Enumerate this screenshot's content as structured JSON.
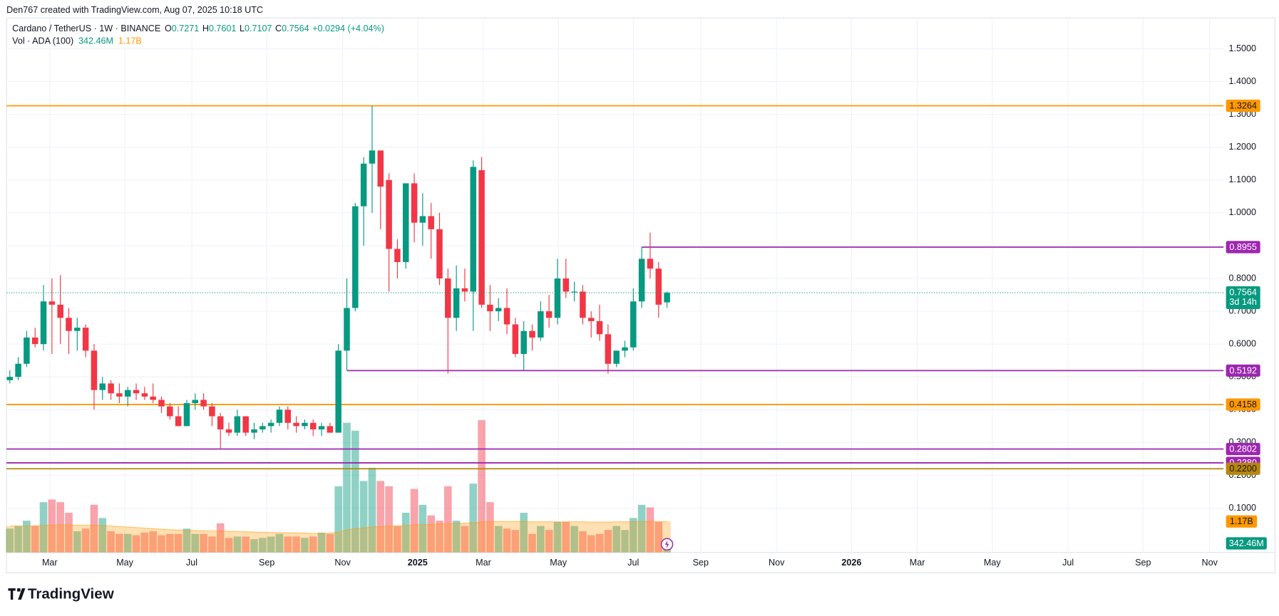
{
  "header": {
    "credit": "Den767 created with TradingView.com, Aug 07, 2025 10:18 UTC"
  },
  "footer": {
    "brand": "TradingView"
  },
  "chart_data": {
    "type": "candlestick",
    "title": "Cardano / TetherUS · 1W · BINANCE",
    "ohlc_keys": [
      "O",
      "H",
      "L",
      "C"
    ],
    "change_label": "+0.0294 (+4.04%)",
    "countdown": "3d 14h",
    "volume_title": "Vol · ADA (100)",
    "up_color": "#089981",
    "down_color": "#f23645",
    "x": [
      0,
      1,
      2,
      3,
      4,
      5,
      6,
      7,
      8,
      9,
      10,
      11,
      12,
      13,
      14,
      15,
      16,
      17,
      18,
      19,
      20,
      21,
      22,
      23,
      24,
      25,
      26,
      27,
      28,
      29,
      30,
      31,
      32,
      33,
      34,
      35,
      36,
      37,
      38,
      39,
      40,
      41,
      42,
      43,
      44,
      45,
      46,
      47,
      48,
      49,
      50,
      51,
      52,
      53,
      54,
      55,
      56,
      57,
      58,
      59,
      60,
      61,
      62,
      63,
      64,
      65,
      66,
      67,
      68,
      69,
      70,
      71,
      72,
      73,
      74,
      75,
      76,
      77,
      78
    ],
    "open": [
      0.49,
      0.5,
      0.54,
      0.62,
      0.6,
      0.73,
      0.72,
      0.68,
      0.64,
      0.65,
      0.58,
      0.46,
      0.48,
      0.45,
      0.44,
      0.46,
      0.45,
      0.44,
      0.43,
      0.41,
      0.38,
      0.35,
      0.42,
      0.43,
      0.41,
      0.38,
      0.34,
      0.33,
      0.38,
      0.33,
      0.34,
      0.35,
      0.36,
      0.4,
      0.36,
      0.35,
      0.36,
      0.34,
      0.35,
      0.33,
      0.58,
      0.71,
      1.02,
      1.15,
      1.19,
      1.1,
      0.89,
      0.85,
      1.09,
      0.97,
      0.99,
      0.95,
      0.8,
      0.68,
      0.77,
      0.76,
      1.13,
      0.72,
      0.7,
      0.71,
      0.66,
      0.57,
      0.64,
      0.62,
      0.7,
      0.68,
      0.8,
      0.76,
      0.76,
      0.68,
      0.67,
      0.63,
      0.54,
      0.58,
      0.59,
      0.73,
      0.86,
      0.83,
      0.7271
    ],
    "high": [
      0.52,
      0.56,
      0.64,
      0.65,
      0.78,
      0.8,
      0.81,
      0.71,
      0.68,
      0.66,
      0.6,
      0.5,
      0.49,
      0.48,
      0.47,
      0.48,
      0.47,
      0.48,
      0.44,
      0.42,
      0.41,
      0.43,
      0.45,
      0.45,
      0.42,
      0.39,
      0.36,
      0.4,
      0.38,
      0.36,
      0.36,
      0.37,
      0.41,
      0.41,
      0.38,
      0.37,
      0.37,
      0.36,
      0.36,
      0.6,
      0.8,
      1.03,
      1.17,
      1.3264,
      1.19,
      1.12,
      0.92,
      1.09,
      1.12,
      1.06,
      1.03,
      1.0,
      0.83,
      0.84,
      0.83,
      1.16,
      1.17,
      0.78,
      0.74,
      0.77,
      0.68,
      0.67,
      0.66,
      0.73,
      0.75,
      0.86,
      0.86,
      0.79,
      0.78,
      0.7,
      0.72,
      0.66,
      0.58,
      0.61,
      0.77,
      0.8955,
      0.94,
      0.85,
      0.7601
    ],
    "low": [
      0.48,
      0.49,
      0.53,
      0.59,
      0.58,
      0.57,
      0.6,
      0.57,
      0.58,
      0.56,
      0.4,
      0.43,
      0.43,
      0.42,
      0.41,
      0.43,
      0.43,
      0.42,
      0.39,
      0.37,
      0.35,
      0.35,
      0.4,
      0.4,
      0.35,
      0.28,
      0.32,
      0.32,
      0.32,
      0.31,
      0.33,
      0.33,
      0.35,
      0.34,
      0.33,
      0.34,
      0.32,
      0.32,
      0.33,
      0.33,
      0.52,
      0.7,
      0.9,
      1.0,
      0.95,
      0.76,
      0.8,
      0.83,
      0.91,
      0.9,
      0.86,
      0.78,
      0.51,
      0.64,
      0.73,
      0.64,
      0.71,
      0.64,
      0.67,
      0.63,
      0.56,
      0.52,
      0.58,
      0.61,
      0.65,
      0.66,
      0.74,
      0.73,
      0.66,
      0.62,
      0.61,
      0.51,
      0.53,
      0.56,
      0.58,
      0.71,
      0.8,
      0.68,
      0.7107
    ],
    "close": [
      0.5,
      0.54,
      0.62,
      0.6,
      0.73,
      0.72,
      0.68,
      0.64,
      0.65,
      0.58,
      0.46,
      0.48,
      0.45,
      0.44,
      0.46,
      0.45,
      0.44,
      0.43,
      0.41,
      0.38,
      0.35,
      0.42,
      0.43,
      0.41,
      0.38,
      0.34,
      0.33,
      0.38,
      0.33,
      0.34,
      0.35,
      0.36,
      0.4,
      0.36,
      0.35,
      0.36,
      0.34,
      0.35,
      0.33,
      0.58,
      0.71,
      1.02,
      1.15,
      1.19,
      1.08,
      0.89,
      0.85,
      1.09,
      0.97,
      0.99,
      0.95,
      0.8,
      0.68,
      0.77,
      0.76,
      1.14,
      0.72,
      0.7,
      0.71,
      0.66,
      0.57,
      0.64,
      0.62,
      0.7,
      0.68,
      0.8,
      0.76,
      0.76,
      0.68,
      0.67,
      0.63,
      0.54,
      0.58,
      0.59,
      0.73,
      0.86,
      0.83,
      0.72,
      0.7564
    ],
    "volume": [
      900000000.0,
      1000000000.0,
      1200000000.0,
      1000000000.0,
      1900000000.0,
      2000000000.0,
      1900000000.0,
      1500000000.0,
      800000000.0,
      900000000.0,
      1800000000.0,
      1300000000.0,
      800000000.0,
      700000000.0,
      700000000.0,
      650000000.0,
      750000000.0,
      800000000.0,
      650000000.0,
      700000000.0,
      700000000.0,
      900000000.0,
      700000000.0,
      700000000.0,
      600000000.0,
      1100000000.0,
      550000000.0,
      600000000.0,
      600000000.0,
      500000000.0,
      550000000.0,
      600000000.0,
      700000000.0,
      600000000.0,
      600000000.0,
      550000000.0,
      600000000.0,
      750000000.0,
      700000000.0,
      2500000000.0,
      4900000000.0,
      4600000000.0,
      2700000000.0,
      3200000000.0,
      2700000000.0,
      2500000000.0,
      1000000000.0,
      1500000000.0,
      2400000000.0,
      1800000000.0,
      1400000000.0,
      1200000000.0,
      2500000000.0,
      1200000000.0,
      1000000000.0,
      2600000000.0,
      5000000000.0,
      1900000000.0,
      1000000000.0,
      900000000.0,
      850000000.0,
      1500000000.0,
      700000000.0,
      1000000000.0,
      850000000.0,
      1150000000.0,
      1150000000.0,
      1000000000.0,
      800000000.0,
      650000000.0,
      700000000.0,
      850000000.0,
      1000000000.0,
      850000000.0,
      1300000000.0,
      1800000000.0,
      1700000000.0,
      1150000000.0,
      342460000
    ],
    "volume_label": "342.46M",
    "volume_ma": [
      1000000000.0,
      1000000000.0,
      1000000000.0,
      1010000000.0,
      1020000000.0,
      1030000000.0,
      1040000000.0,
      1040000000.0,
      1030000000.0,
      1030000000.0,
      1030000000.0,
      1020000000.0,
      1000000000.0,
      980000000.0,
      960000000.0,
      940000000.0,
      920000000.0,
      900000000.0,
      880000000.0,
      860000000.0,
      850000000.0,
      840000000.0,
      830000000.0,
      820000000.0,
      810000000.0,
      810000000.0,
      800000000.0,
      790000000.0,
      780000000.0,
      770000000.0,
      760000000.0,
      750000000.0,
      750000000.0,
      740000000.0,
      740000000.0,
      730000000.0,
      720000000.0,
      720000000.0,
      720000000.0,
      770000000.0,
      850000000.0,
      900000000.0,
      930000000.0,
      960000000.0,
      980000000.0,
      1000000000.0,
      1000000000.0,
      1020000000.0,
      1040000000.0,
      1050000000.0,
      1060000000.0,
      1070000000.0,
      1090000000.0,
      1100000000.0,
      1100000000.0,
      1120000000.0,
      1160000000.0,
      1170000000.0,
      1170000000.0,
      1170000000.0,
      1170000000.0,
      1170000000.0,
      1160000000.0,
      1160000000.0,
      1160000000.0,
      1160000000.0,
      1160000000.0,
      1160000000.0,
      1160000000.0,
      1150000000.0,
      1150000000.0,
      1150000000.0,
      1160000000.0,
      1160000000.0,
      1160000000.0,
      1170000000.0,
      1170000000.0,
      1170000000.0,
      1170000000.0
    ],
    "volume_ma_label": "1.17B",
    "volume_ma_color": "#ff9800",
    "volume_ylim": [
      0,
      20200000000.0
    ],
    "xlim": [
      -0.39,
      144.05
    ],
    "xticks": [
      {
        "value": 4.74,
        "label": "Mar"
      },
      {
        "value": 13.65,
        "label": "May"
      },
      {
        "value": 21.6,
        "label": "Jul"
      },
      {
        "value": 30.5,
        "label": "Sep"
      },
      {
        "value": 39.5,
        "label": "Nov"
      },
      {
        "value": 48.4,
        "label": "2025",
        "bold": true
      },
      {
        "value": 56.2,
        "label": "Mar"
      },
      {
        "value": 65.1,
        "label": "May"
      },
      {
        "value": 74.0,
        "label": "Jul"
      },
      {
        "value": 82.0,
        "label": "Sep"
      },
      {
        "value": 91.0,
        "label": "Nov"
      },
      {
        "value": 99.9,
        "label": "2026",
        "bold": true
      },
      {
        "value": 107.7,
        "label": "Mar"
      },
      {
        "value": 116.6,
        "label": "May"
      },
      {
        "value": 125.6,
        "label": "Jul"
      },
      {
        "value": 134.5,
        "label": "Sep"
      },
      {
        "value": 142.4,
        "label": "Nov"
      }
    ],
    "ylim": [
      -0.035,
      1.594
    ],
    "yticks": [
      {
        "value": 0.1,
        "label": "0.1000"
      },
      {
        "value": 0.2,
        "label": "0.2000"
      },
      {
        "value": 0.3,
        "label": "0.3000"
      },
      {
        "value": 0.4,
        "label": "0.4000"
      },
      {
        "value": 0.5,
        "label": "0.5000"
      },
      {
        "value": 0.6,
        "label": "0.6000"
      },
      {
        "value": 0.7,
        "label": "0.7000"
      },
      {
        "value": 0.8,
        "label": "0.8000"
      },
      {
        "value": 0.9,
        "label": "0.9000"
      },
      {
        "value": 1.0,
        "label": "1.0000"
      },
      {
        "value": 1.1,
        "label": "1.1000"
      },
      {
        "value": 1.2,
        "label": "1.2000"
      },
      {
        "value": 1.3,
        "label": "1.3000"
      },
      {
        "value": 1.4,
        "label": "1.4000"
      },
      {
        "value": 1.5,
        "label": "1.5000"
      }
    ],
    "grid": true,
    "levels": [
      {
        "value": 1.3264,
        "color": "#ff9800"
      },
      {
        "value": 0.8955,
        "color": "#9c27b0",
        "from_x": 75
      },
      {
        "value": 0.5192,
        "color": "#9c27b0",
        "from_x": 40
      },
      {
        "value": 0.4158,
        "color": "#ff9800"
      },
      {
        "value": 0.2802,
        "color": "#9c27b0"
      },
      {
        "value": 0.238,
        "label": "0.2380",
        "color": "#9c27b0"
      },
      {
        "value": 0.22,
        "label": "0.2200",
        "color": "#b8860b"
      }
    ]
  }
}
